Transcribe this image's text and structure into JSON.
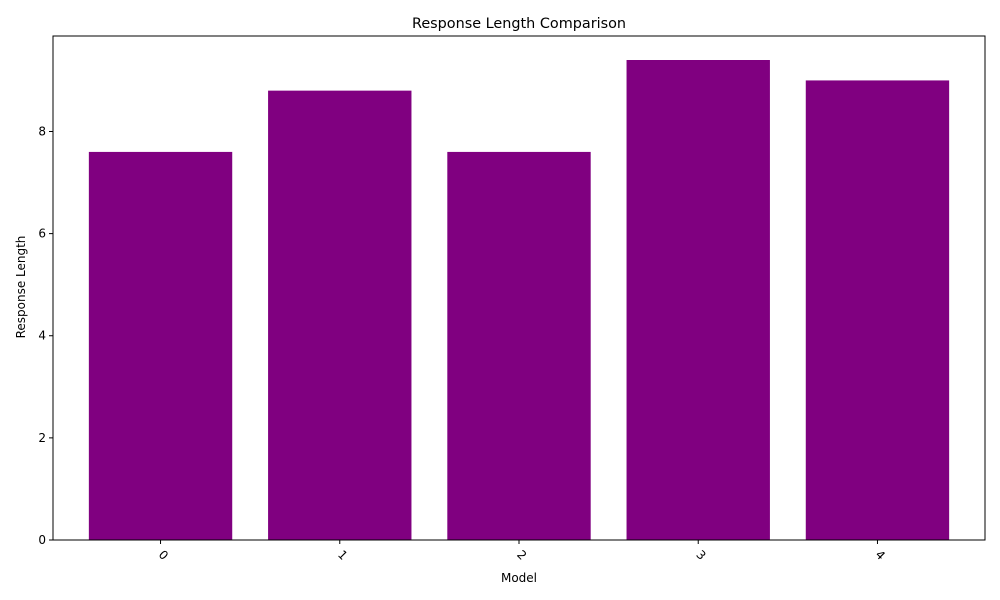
{
  "chart_data": {
    "type": "bar",
    "title": "Response Length Comparison",
    "xlabel": "Model",
    "ylabel": "Response Length",
    "categories": [
      "0",
      "1",
      "2",
      "3",
      "4"
    ],
    "values": [
      7.6,
      8.8,
      7.6,
      9.4,
      9.0
    ],
    "ylim": [
      0,
      9.87
    ],
    "yticks": [
      "0",
      "2",
      "4",
      "6",
      "8"
    ],
    "x_tick_rotation_deg": 45,
    "grid": false,
    "legend": "none",
    "bar_color": "#800080"
  }
}
